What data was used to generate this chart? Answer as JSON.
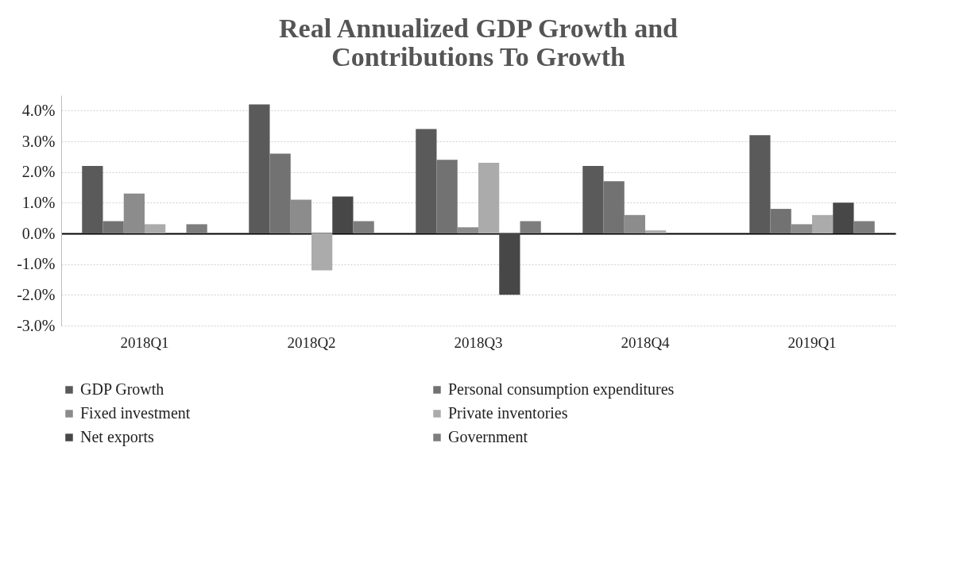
{
  "chart_data": {
    "type": "bar",
    "title": "Real Annualized GDP Growth and Contributions To Growth",
    "categories": [
      "2018Q1",
      "2018Q2",
      "2018Q3",
      "2018Q4",
      "2019Q1"
    ],
    "series": [
      {
        "name": "GDP Growth",
        "color": "#5a5a5a",
        "values": [
          2.2,
          4.2,
          3.4,
          2.2,
          3.2
        ]
      },
      {
        "name": "Personal consumption expenditures",
        "color": "#727272",
        "values": [
          0.4,
          2.6,
          2.4,
          1.7,
          0.8
        ]
      },
      {
        "name": "Fixed investment",
        "color": "#8c8c8c",
        "values": [
          1.3,
          1.1,
          0.2,
          0.6,
          0.3
        ]
      },
      {
        "name": "Private inventories",
        "color": "#ababab",
        "values": [
          0.3,
          -1.2,
          2.3,
          0.1,
          0.6
        ]
      },
      {
        "name": "Net exports",
        "color": "#474747",
        "values": [
          0.0,
          1.2,
          -2.0,
          0.0,
          1.0
        ]
      },
      {
        "name": "Government",
        "color": "#7d7d7d",
        "values": [
          0.3,
          0.4,
          0.4,
          0.0,
          0.4
        ]
      }
    ],
    "ylim": [
      -3,
      4.5
    ],
    "yticks": [
      {
        "value": -3,
        "label": "-3.0%"
      },
      {
        "value": -2,
        "label": "-2.0%"
      },
      {
        "value": -1,
        "label": "-1.0%"
      },
      {
        "value": 0,
        "label": "0.0%"
      },
      {
        "value": 1,
        "label": "1.0%"
      },
      {
        "value": 2,
        "label": "2.0%"
      },
      {
        "value": 3,
        "label": "3.0%"
      },
      {
        "value": 4,
        "label": "4.0%"
      }
    ],
    "grid": "y",
    "legend": "bottom"
  }
}
